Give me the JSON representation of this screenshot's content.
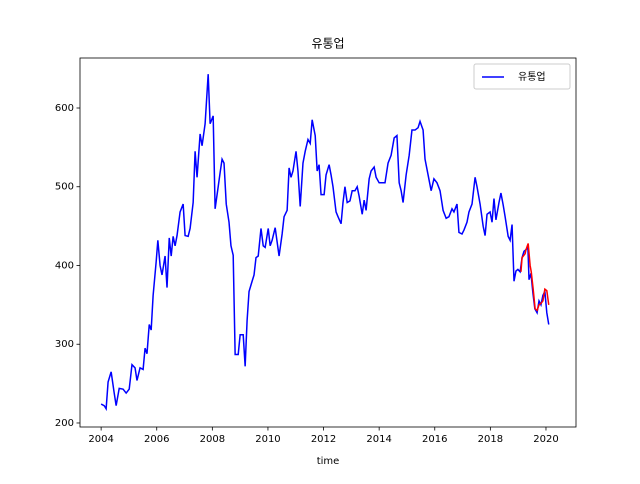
{
  "chart_data": {
    "type": "line",
    "title": "유통업",
    "xlabel": "time",
    "xlim": [
      2003.24,
      2021.08
    ],
    "ylim": [
      194.9,
      663.5
    ],
    "xticks": [
      2004,
      2006,
      2008,
      2010,
      2012,
      2014,
      2016,
      2018,
      2020
    ],
    "yticks": [
      200,
      300,
      400,
      500,
      600
    ],
    "legend": "upper right",
    "grid": false,
    "series": [
      {
        "name": "유통업",
        "color": "#0000ff",
        "x": [
          2004.0,
          2004.11,
          2004.18,
          2004.25,
          2004.36,
          2004.47,
          2004.54,
          2004.65,
          2004.79,
          2004.9,
          2005.01,
          2005.11,
          2005.22,
          2005.29,
          2005.4,
          2005.51,
          2005.58,
          2005.65,
          2005.73,
          2005.8,
          2005.87,
          2005.98,
          2006.04,
          2006.12,
          2006.19,
          2006.3,
          2006.37,
          2006.45,
          2006.52,
          2006.59,
          2006.66,
          2006.73,
          2006.84,
          2006.95,
          2007.02,
          2007.13,
          2007.2,
          2007.31,
          2007.38,
          2007.45,
          2007.56,
          2007.63,
          2007.74,
          2007.85,
          2007.92,
          2008.03,
          2008.1,
          2008.21,
          2008.28,
          2008.35,
          2008.42,
          2008.5,
          2008.6,
          2008.67,
          2008.75,
          2008.82,
          2008.93,
          2009.0,
          2009.11,
          2009.18,
          2009.25,
          2009.32,
          2009.43,
          2009.5,
          2009.57,
          2009.65,
          2009.75,
          2009.83,
          2009.9,
          2010.01,
          2010.08,
          2010.15,
          2010.26,
          2010.33,
          2010.4,
          2010.51,
          2010.58,
          2010.69,
          2010.76,
          2010.83,
          2010.9,
          2011.01,
          2011.08,
          2011.16,
          2011.26,
          2011.34,
          2011.44,
          2011.52,
          2011.59,
          2011.7,
          2011.77,
          2011.84,
          2011.91,
          2012.02,
          2012.09,
          2012.2,
          2012.27,
          2012.34,
          2012.45,
          2012.52,
          2012.63,
          2012.7,
          2012.77,
          2012.85,
          2012.95,
          2013.03,
          2013.13,
          2013.21,
          2013.28,
          2013.39,
          2013.46,
          2013.53,
          2013.64,
          2013.71,
          2013.82,
          2013.89,
          2014.0,
          2014.1,
          2014.21,
          2014.32,
          2014.43,
          2014.54,
          2014.64,
          2014.72,
          2014.79,
          2014.86,
          2014.97,
          2015.08,
          2015.18,
          2015.29,
          2015.4,
          2015.47,
          2015.58,
          2015.65,
          2015.76,
          2015.87,
          2015.97,
          2016.08,
          2016.19,
          2016.3,
          2016.41,
          2016.51,
          2016.62,
          2016.69,
          2016.8,
          2016.87,
          2016.98,
          2017.05,
          2017.16,
          2017.23,
          2017.34,
          2017.45,
          2017.52,
          2017.63,
          2017.74,
          2017.81,
          2017.88,
          2017.99,
          2018.06,
          2018.13,
          2018.2,
          2018.31,
          2018.38,
          2018.46,
          2018.53,
          2018.64,
          2018.71,
          2018.78,
          2018.85,
          2018.92,
          2018.99,
          2019.07,
          2019.14,
          2019.21,
          2019.28,
          2019.35,
          2019.39,
          2019.46,
          2019.53,
          2019.6,
          2019.68,
          2019.75,
          2019.82,
          2019.89,
          2019.96,
          2020.03,
          2020.1
        ],
        "values": [
          224,
          222,
          218,
          252,
          265,
          238,
          222,
          244,
          243,
          238,
          243,
          274,
          270,
          254,
          270,
          268,
          295,
          288,
          325,
          318,
          362,
          405,
          432,
          400,
          388,
          412,
          372,
          435,
          412,
          437,
          425,
          438,
          468,
          478,
          438,
          437,
          447,
          480,
          545,
          512,
          567,
          552,
          580,
          643,
          580,
          590,
          472,
          500,
          518,
          535,
          530,
          478,
          455,
          425,
          413,
          287,
          287,
          312,
          312,
          272,
          330,
          367,
          380,
          388,
          410,
          412,
          447,
          425,
          423,
          447,
          425,
          432,
          448,
          430,
          412,
          440,
          462,
          470,
          524,
          512,
          520,
          545,
          520,
          475,
          530,
          545,
          560,
          555,
          585,
          565,
          520,
          528,
          490,
          490,
          515,
          528,
          515,
          500,
          468,
          462,
          453,
          480,
          500,
          480,
          482,
          495,
          495,
          500,
          488,
          465,
          483,
          470,
          510,
          520,
          525,
          512,
          505,
          505,
          505,
          530,
          540,
          562,
          565,
          505,
          495,
          480,
          515,
          540,
          572,
          572,
          575,
          583,
          572,
          535,
          515,
          495,
          510,
          505,
          495,
          470,
          460,
          462,
          472,
          468,
          478,
          442,
          440,
          445,
          455,
          468,
          478,
          512,
          500,
          478,
          450,
          438,
          465,
          468,
          455,
          485,
          458,
          480,
          492,
          477,
          462,
          437,
          432,
          452,
          380,
          393,
          395,
          392,
          410,
          418,
          420,
          423,
          382,
          390,
          365,
          345,
          340,
          355,
          350,
          362,
          367,
          340,
          325
        ]
      },
      {
        "color": "#ff0000",
        "x": [
          2019.1,
          2019.14,
          2019.25,
          2019.28,
          2019.36,
          2019.43,
          2019.47,
          2019.54,
          2019.61,
          2019.68,
          2019.75,
          2019.82,
          2019.89,
          2019.96,
          2020.03,
          2020.1
        ],
        "values": [
          392,
          410,
          415,
          420,
          428,
          400,
          392,
          370,
          345,
          343,
          350,
          352,
          355,
          370,
          368,
          350
        ]
      }
    ]
  }
}
